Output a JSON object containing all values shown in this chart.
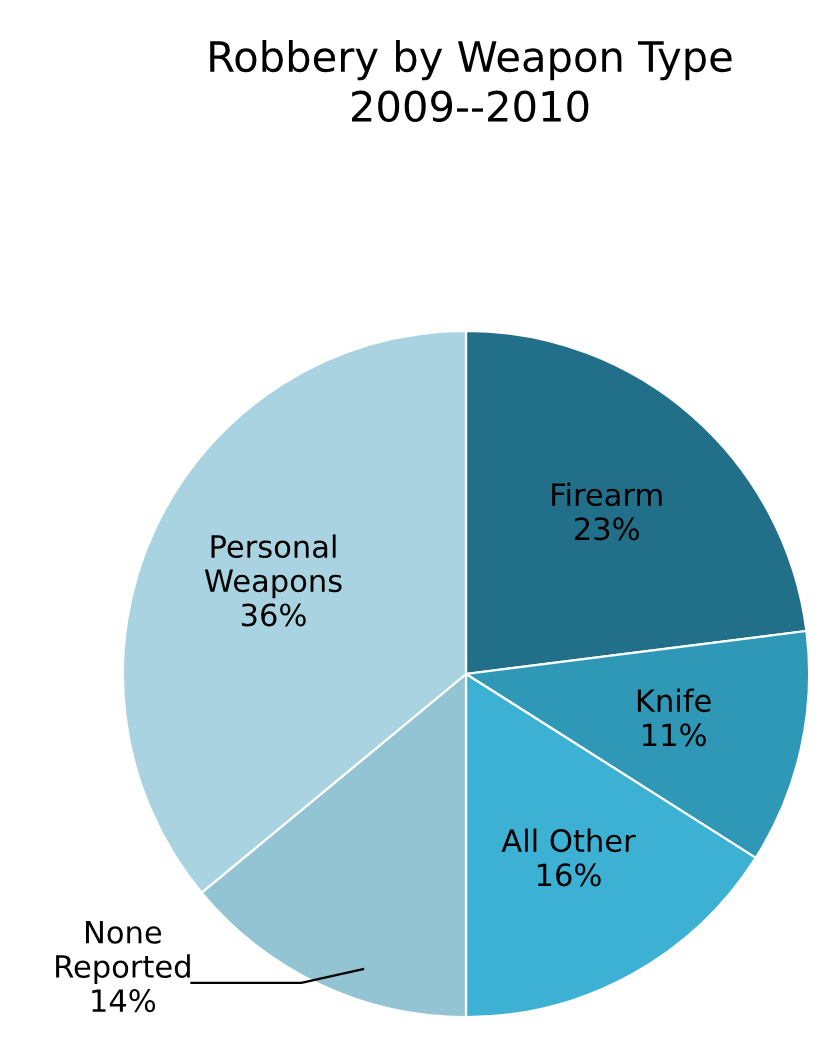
{
  "chart_data": {
    "type": "pie",
    "title": "Robbery by Weapon Type\n2009--2010",
    "categories": [
      "Firearm",
      "Knife",
      "All Other",
      "None Reported",
      "Personal Weapons"
    ],
    "values": [
      23,
      11,
      16,
      14,
      36
    ],
    "colors": [
      "#216f88",
      "#2e98b6",
      "#3db1d4",
      "#93c4d4",
      "#a9d3e0"
    ],
    "value_labels": [
      "23%",
      "11%",
      "16%",
      "14%",
      "36%"
    ],
    "legend": false
  }
}
